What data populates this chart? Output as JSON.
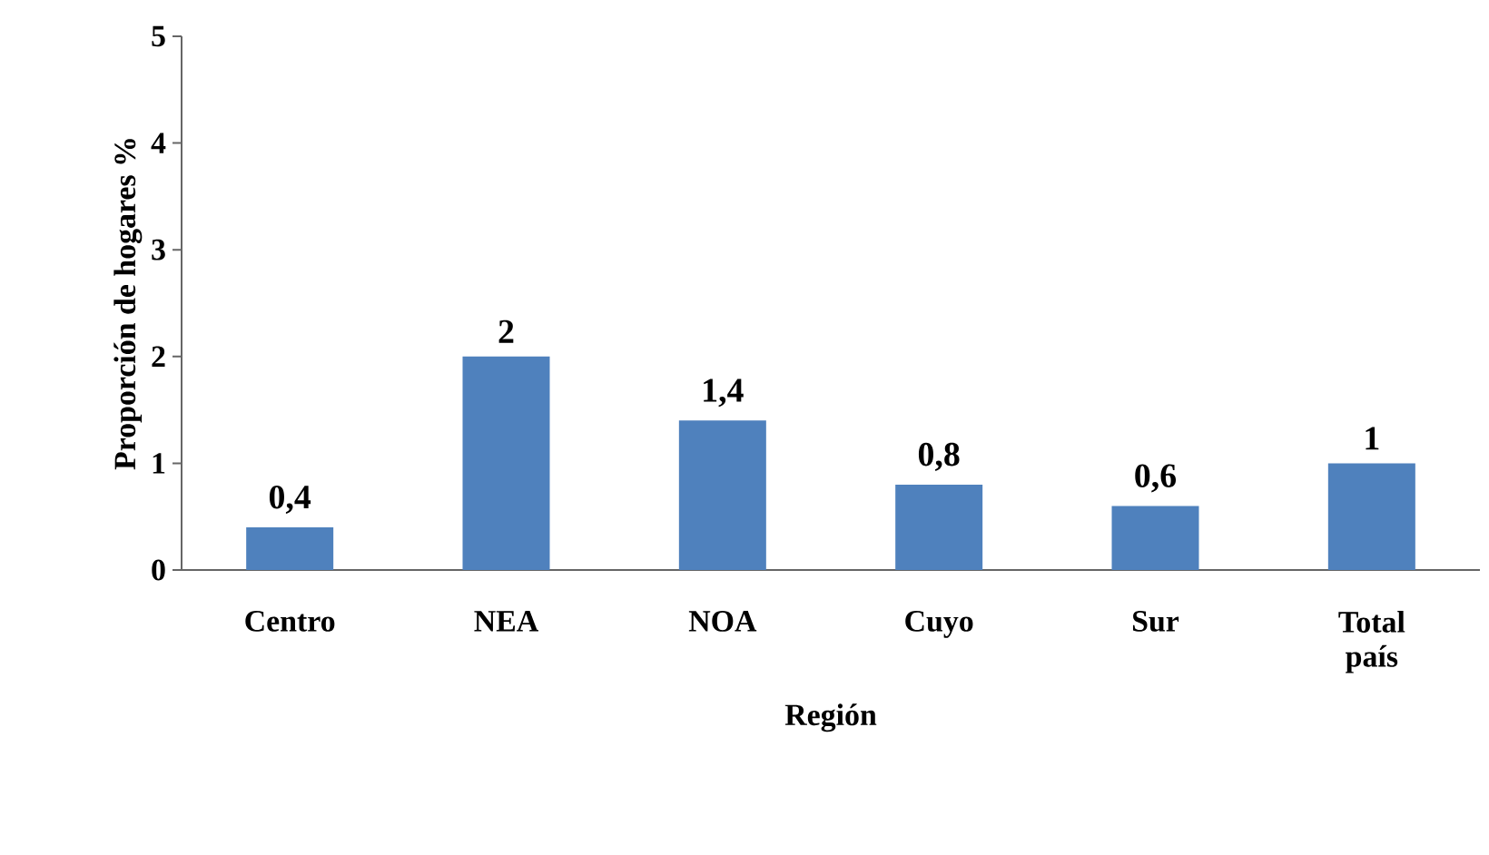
{
  "chart_data": {
    "type": "bar",
    "xlabel": "Región",
    "ylabel": "Proporción de hogares %",
    "categories": [
      "Centro",
      "NEA",
      "NOA",
      "Cuyo",
      "Sur",
      "Total país"
    ],
    "values": [
      0.4,
      2,
      1.4,
      0.8,
      0.6,
      1
    ],
    "value_labels": [
      "0,4",
      "2",
      "1,4",
      "0,8",
      "0,6",
      "1"
    ],
    "color": "#4f81bd",
    "ylim": [
      0,
      5
    ],
    "yticks": [
      0,
      1,
      2,
      3,
      4,
      5
    ]
  }
}
